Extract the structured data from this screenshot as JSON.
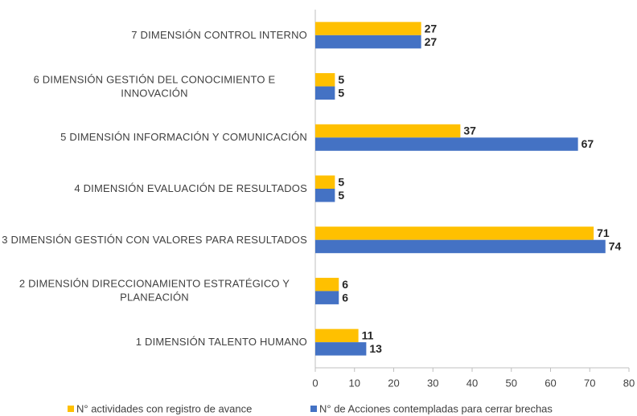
{
  "chart_data": {
    "type": "barh",
    "categories": [
      "7 DIMENSIÓN CONTROL INTERNO",
      "6 DIMENSIÓN GESTIÓN DEL CONOCIMIENTO E INNOVACIÓN",
      "5 DIMENSIÓN INFORMACIÓN Y COMUNICACIÓN",
      "4 DIMENSIÓN EVALUACIÓN DE RESULTADOS",
      "3 DIMENSIÓN GESTIÓN CON VALORES PARA RESULTADOS",
      "2 DIMENSIÓN DIRECCIONAMIENTO ESTRATÉGICO Y PLANEACIÓN",
      "1 DIMENSIÓN TALENTO HUMANO"
    ],
    "series": [
      {
        "name": "N° actividades con registro de avance",
        "color": "#FFC000",
        "values": [
          27,
          5,
          37,
          5,
          71,
          6,
          11
        ]
      },
      {
        "name": "N° de Acciones contempladas para cerrar brechas",
        "color": "#4472C4",
        "values": [
          27,
          5,
          67,
          5,
          74,
          6,
          13
        ]
      }
    ],
    "xlim": [
      0,
      80
    ],
    "xticks": [
      0,
      10,
      20,
      30,
      40,
      50,
      60,
      70,
      80
    ],
    "grid": false,
    "legend": "bottom"
  }
}
